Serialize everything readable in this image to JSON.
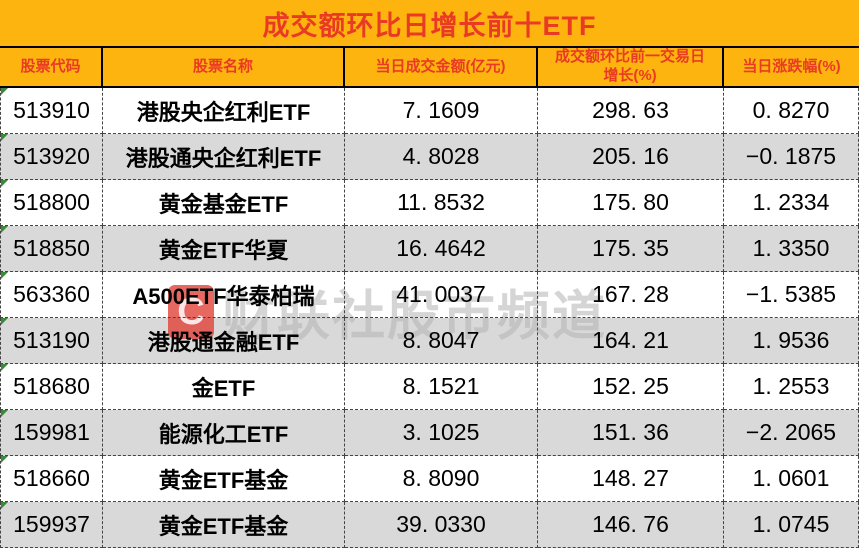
{
  "title": "成交额环比日增长前十ETF",
  "colors": {
    "header_bg": "#feb40e",
    "header_text": "#e93b24",
    "row_alt_bg": "#d9d9d9",
    "body_text": "#000000",
    "corner_flag": "#3a8a3a",
    "watermark_text": "#b2b2b2",
    "watermark_logo_bg": "#df3e34"
  },
  "watermark": {
    "logo_text": "C",
    "text": "财联社股市频道"
  },
  "table": {
    "columns": [
      {
        "label": "股票代码"
      },
      {
        "label": "股票名称"
      },
      {
        "label": "当日成交金额(亿元)"
      },
      {
        "label": "成交额环比前一交易日增长(%)"
      },
      {
        "label": "当日涨跌幅(%)"
      }
    ],
    "rows": [
      {
        "code": "513910",
        "name": "港股央企红利ETF",
        "amount": "7. 1609",
        "growth": "298. 63",
        "change": "0. 8270"
      },
      {
        "code": "513920",
        "name": "港股通央企红利ETF",
        "amount": "4. 8028",
        "growth": "205. 16",
        "change": "−0. 1875"
      },
      {
        "code": "518800",
        "name": "黄金基金ETF",
        "amount": "11. 8532",
        "growth": "175. 80",
        "change": "1. 2334"
      },
      {
        "code": "518850",
        "name": "黄金ETF华夏",
        "amount": "16. 4642",
        "growth": "175. 35",
        "change": "1. 3350"
      },
      {
        "code": "563360",
        "name": "A500ETF华泰柏瑞",
        "amount": "41. 0037",
        "growth": "167. 28",
        "change": "−1. 5385"
      },
      {
        "code": "513190",
        "name": "港股通金融ETF",
        "amount": "8. 8047",
        "growth": "164. 21",
        "change": "1. 9536"
      },
      {
        "code": "518680",
        "name": "金ETF",
        "amount": "8. 1521",
        "growth": "152. 25",
        "change": "1. 2553"
      },
      {
        "code": "159981",
        "name": "能源化工ETF",
        "amount": "3. 1025",
        "growth": "151. 36",
        "change": "−2. 2065"
      },
      {
        "code": "518660",
        "name": "黄金ETF基金",
        "amount": "8. 8090",
        "growth": "148. 27",
        "change": "1. 0601"
      },
      {
        "code": "159937",
        "name": "黄金ETF基金",
        "amount": "39. 0330",
        "growth": "146. 76",
        "change": "1. 0745"
      }
    ]
  },
  "chart_data": {
    "type": "table",
    "title": "成交额环比日增长前十ETF",
    "columns": [
      "股票代码",
      "股票名称",
      "当日成交金额(亿元)",
      "成交额环比前一交易日增长(%)",
      "当日涨跌幅(%)"
    ],
    "rows": [
      [
        "513910",
        "港股央企红利ETF",
        7.1609,
        298.63,
        0.827
      ],
      [
        "513920",
        "港股通央企红利ETF",
        4.8028,
        205.16,
        -0.1875
      ],
      [
        "518800",
        "黄金基金ETF",
        11.8532,
        175.8,
        1.2334
      ],
      [
        "518850",
        "黄金ETF华夏",
        16.4642,
        175.35,
        1.335
      ],
      [
        "563360",
        "A500ETF华泰柏瑞",
        41.0037,
        167.28,
        -1.5385
      ],
      [
        "513190",
        "港股通金融ETF",
        8.8047,
        164.21,
        1.9536
      ],
      [
        "518680",
        "金ETF",
        8.1521,
        152.25,
        1.2553
      ],
      [
        "159981",
        "能源化工ETF",
        3.1025,
        151.36,
        -2.2065
      ],
      [
        "518660",
        "黄金ETF基金",
        8.809,
        148.27,
        1.0601
      ],
      [
        "159937",
        "黄金ETF基金",
        39.033,
        146.76,
        1.0745
      ]
    ]
  }
}
